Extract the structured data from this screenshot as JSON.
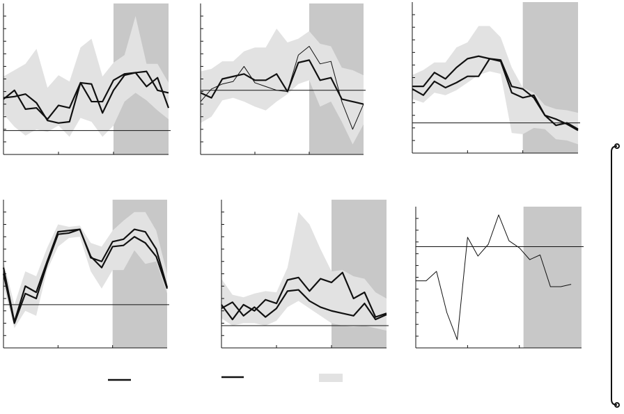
{
  "chart_data": [
    {
      "type": "line",
      "x": [
        0,
        1,
        2,
        3,
        4,
        5,
        6,
        7,
        8,
        9,
        10,
        11,
        12,
        13,
        14,
        15
      ],
      "xlim": [
        0,
        15
      ],
      "xticks": [
        5,
        10
      ],
      "ylim": [
        0,
        12
      ],
      "yticks": [
        1,
        2,
        3,
        4,
        5,
        6,
        7,
        8,
        9,
        10,
        11
      ],
      "shade": [
        10,
        15
      ],
      "shade_color": "#c8c8c8",
      "hline": 1.9,
      "band": {
        "color": "#e2e2e2",
        "lower": [
          3.2,
          2.2,
          1.5,
          2.0,
          1.8,
          2.3,
          1.4,
          2.9,
          2.6,
          1.4,
          2.3,
          4.2,
          4.9,
          4.3,
          3.5,
          2.8
        ],
        "upper": [
          6.2,
          6.7,
          7.2,
          8.4,
          5.3,
          6.3,
          5.8,
          8.5,
          9.2,
          6.2,
          7.3,
          7.9,
          11,
          7.2,
          7.2,
          5.7
        ]
      },
      "series": [
        {
          "color": "#111111",
          "weight": "bold",
          "values": [
            4.4,
            5.1,
            3.6,
            3.7,
            2.8,
            3.9,
            3.7,
            5.7,
            5.6,
            3.3,
            5.1,
            6.3,
            6.5,
            5.4,
            6.1,
            3.7
          ]
        },
        {
          "color": "#111111",
          "weight": "bold",
          "values": [
            4.5,
            4.6,
            4.8,
            4.1,
            2.7,
            2.5,
            2.6,
            5.7,
            4.2,
            4.2,
            5.9,
            6.4,
            6.5,
            6.6,
            5.1,
            4.9
          ]
        }
      ]
    },
    {
      "type": "line",
      "x": [
        0,
        1,
        2,
        3,
        4,
        5,
        6,
        7,
        8,
        9,
        10,
        11,
        12,
        13,
        14,
        15
      ],
      "xlim": [
        0,
        15
      ],
      "xticks": [
        5,
        10
      ],
      "ylim": [
        0,
        12
      ],
      "yticks": [
        1,
        2,
        3,
        4,
        5,
        6,
        7,
        8,
        9,
        10,
        11
      ],
      "shade": [
        10,
        15
      ],
      "shade_color": "#c8c8c8",
      "hline": 5.1,
      "band": {
        "color": "#e2e2e2",
        "lower": [
          2.5,
          3.0,
          4.3,
          4.5,
          4.2,
          3.8,
          3.5,
          4.2,
          4.8,
          5.6,
          5.9,
          3.8,
          4.2,
          2.6,
          0.8,
          2.4
        ],
        "upper": [
          6.6,
          6.8,
          7.4,
          7.4,
          8.2,
          8.5,
          8.5,
          10.0,
          8.9,
          9.2,
          9.8,
          8.8,
          8.6,
          6.9,
          6.7,
          6.3
        ]
      },
      "series": [
        {
          "color": "#111111",
          "weight": "light",
          "values": [
            4.2,
            5.2,
            5.6,
            5.8,
            7.0,
            5.7,
            5.4,
            5.1,
            5.0,
            7.9,
            8.6,
            7.2,
            7.4,
            4.2,
            2.0,
            4.0
          ]
        },
        {
          "color": "#111111",
          "weight": "bold",
          "values": [
            4.9,
            4.5,
            6.0,
            6.2,
            6.4,
            5.9,
            5.9,
            6.4,
            5.0,
            7.3,
            7.5,
            5.9,
            6.1,
            4.4,
            4.2,
            4.0
          ]
        }
      ]
    },
    {
      "type": "line",
      "x": [
        0,
        1,
        2,
        3,
        4,
        5,
        6,
        7,
        8,
        9,
        10,
        11,
        12,
        13,
        14,
        15
      ],
      "xlim": [
        0,
        15
      ],
      "xticks": [
        5,
        10
      ],
      "ylim": [
        0,
        12
      ],
      "yticks": [
        1,
        2,
        3,
        4,
        5,
        6,
        7,
        8,
        9,
        10,
        11
      ],
      "shade": [
        10,
        15
      ],
      "shade_color": "#c8c8c8",
      "hline": 2.4,
      "band": {
        "color": "#e2e2e2",
        "lower": [
          4.3,
          4.0,
          4.8,
          4.6,
          5.0,
          5.6,
          6.2,
          6.5,
          6.3,
          1.6,
          1.5,
          2.0,
          1.9,
          1.1,
          1.0,
          0.7
        ],
        "upper": [
          6.2,
          6.6,
          7.2,
          7.2,
          8.4,
          8.8,
          10.1,
          10.1,
          9.2,
          6.8,
          5.2,
          4.8,
          3.8,
          3.5,
          3.4,
          3.2
        ]
      },
      "series": [
        {
          "color": "#111111",
          "weight": "bold",
          "values": [
            5.3,
            5.3,
            6.4,
            5.9,
            6.8,
            7.5,
            7.7,
            7.5,
            7.4,
            5.3,
            5.1,
            4.4,
            3.0,
            2.2,
            2.4,
            1.9
          ]
        },
        {
          "color": "#111111",
          "weight": "bold",
          "values": [
            5.1,
            4.6,
            5.7,
            5.2,
            5.6,
            6.1,
            6.1,
            7.5,
            7.3,
            4.8,
            4.4,
            4.6,
            3.0,
            2.7,
            2.3,
            1.8
          ]
        }
      ]
    },
    {
      "type": "line",
      "x": [
        0,
        1,
        2,
        3,
        4,
        5,
        6,
        7,
        8,
        9,
        10,
        11,
        12,
        13,
        14,
        15
      ],
      "xlim": [
        0,
        15
      ],
      "xticks": [
        5,
        10
      ],
      "ylim": [
        0,
        12
      ],
      "yticks": [
        1,
        2,
        3,
        4,
        5,
        6,
        7,
        8,
        9,
        10,
        11
      ],
      "shade": [
        10,
        15
      ],
      "shade_color": "#c8c8c8",
      "hline": 3.5,
      "band": {
        "color": "#e2e2e2",
        "lower": [
          5.0,
          1.6,
          3.0,
          2.6,
          6.3,
          8.2,
          8.9,
          9.0,
          6.2,
          4.8,
          6.3,
          6.3,
          7.9,
          6.8,
          7.0,
          4.4
        ],
        "upper": [
          7.0,
          3.5,
          6.2,
          5.8,
          8.1,
          10.0,
          9.8,
          9.9,
          8.5,
          8.2,
          9.5,
          10.3,
          11.0,
          11.0,
          9.5,
          6.0
        ]
      },
      "series": [
        {
          "color": "#111111",
          "weight": "bold",
          "values": [
            6.0,
            2.0,
            4.4,
            4.0,
            6.8,
            9.2,
            9.3,
            9.6,
            7.3,
            7.0,
            8.6,
            8.8,
            9.6,
            9.4,
            8.0,
            4.9
          ]
        },
        {
          "color": "#111111",
          "weight": "bold",
          "values": [
            6.5,
            2.1,
            5.0,
            4.5,
            7.0,
            9.4,
            9.5,
            9.6,
            7.4,
            6.5,
            8.2,
            8.3,
            9.0,
            8.5,
            7.4,
            4.8
          ]
        }
      ]
    },
    {
      "type": "line",
      "x": [
        0,
        1,
        2,
        3,
        4,
        5,
        6,
        7,
        8,
        9,
        10,
        11,
        12,
        13,
        14,
        15
      ],
      "xlim": [
        0,
        15
      ],
      "xticks": [
        5,
        10
      ],
      "ylim": [
        0,
        12
      ],
      "yticks": [
        1,
        2,
        3,
        4,
        5,
        6,
        7,
        8,
        9,
        10,
        11
      ],
      "shade": [
        10,
        15
      ],
      "shade_color": "#c8c8c8",
      "hline": 1.8,
      "band": {
        "color": "#e2e2e2",
        "lower": [
          2.4,
          1.8,
          2.0,
          2.0,
          1.8,
          2.2,
          3.3,
          3.8,
          3.2,
          2.6,
          2.0,
          1.8,
          1.7,
          1.8,
          1.6,
          1.4
        ],
        "upper": [
          5.6,
          4.3,
          4.1,
          4.4,
          4.6,
          4.5,
          6.5,
          11.0,
          10.0,
          8.0,
          6.2,
          6.3,
          5.8,
          5.6,
          4.5,
          4.0
        ]
      },
      "series": [
        {
          "color": "#111111",
          "weight": "bold",
          "values": [
            3.5,
            2.3,
            3.5,
            3.0,
            3.9,
            3.6,
            5.5,
            5.7,
            4.6,
            5.6,
            5.3,
            6.1,
            4.0,
            4.5,
            2.5,
            2.8
          ]
        },
        {
          "color": "#111111",
          "weight": "bold",
          "values": [
            3.2,
            3.7,
            2.6,
            3.3,
            2.5,
            3.2,
            4.6,
            4.7,
            3.8,
            3.3,
            3.0,
            2.8,
            2.6,
            3.6,
            2.3,
            2.7
          ]
        }
      ]
    },
    {
      "type": "line",
      "x": [
        0,
        1,
        2,
        3,
        4,
        5,
        6,
        7,
        8,
        9,
        10,
        11,
        12,
        13,
        14,
        15
      ],
      "xlim": [
        0,
        16
      ],
      "xticks": [
        5,
        10
      ],
      "ylim": [
        0,
        12
      ],
      "yticks": [
        1,
        2,
        3,
        4,
        5,
        6,
        7,
        8,
        9,
        10,
        11
      ],
      "shade": [
        10.4,
        16
      ],
      "shade_color": "#c8c8c8",
      "hline": 8.6,
      "series": [
        {
          "color": "#111111",
          "weight": "light",
          "values": [
            5.7,
            5.7,
            6.5,
            3.0,
            0.7,
            9.4,
            7.8,
            8.8,
            11.3,
            9.1,
            8.5,
            7.5,
            7.9,
            5.2,
            5.2,
            5.4
          ]
        }
      ]
    }
  ]
}
